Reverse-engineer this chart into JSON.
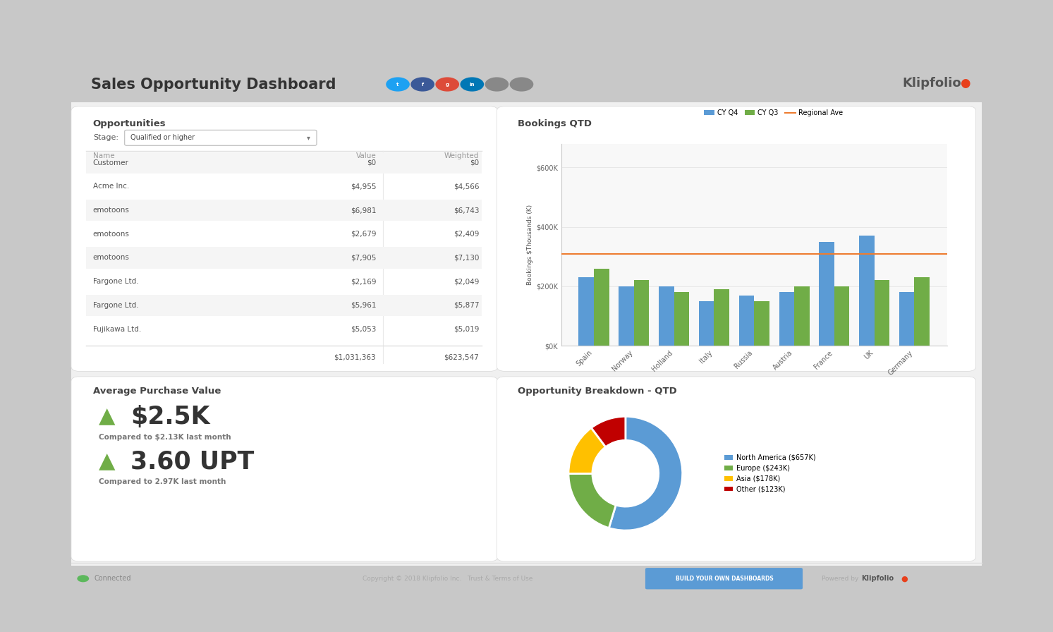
{
  "title": "Sales Opportunity Dashboard",
  "outer_bg": "#c8c8c8",
  "inner_bg": "#f0f0f0",
  "panel_bg": "#ffffff",
  "border_color": "#d8d8d8",
  "opportunities_title": "Opportunities",
  "stage_label": "Stage:",
  "stage_value": "Qualified or higher",
  "table_headers": [
    "Name",
    "Value",
    "Weighted"
  ],
  "table_rows": [
    [
      "Customer",
      "$0",
      "$0"
    ],
    [
      "Acme Inc.",
      "$4,955",
      "$4,566"
    ],
    [
      "emotoons",
      "$6,981",
      "$6,743"
    ],
    [
      "emotoons",
      "$2,679",
      "$2,409"
    ],
    [
      "emotoons",
      "$7,905",
      "$7,130"
    ],
    [
      "Fargone Ltd.",
      "$2,169",
      "$2,049"
    ],
    [
      "Fargone Ltd.",
      "$5,961",
      "$5,877"
    ],
    [
      "Fujikawa Ltd.",
      "$5,053",
      "$5,019"
    ]
  ],
  "table_totals": [
    "$1,031,363",
    "$623,547"
  ],
  "bookings_title": "Bookings QTD",
  "bookings_ylabel": "Bookings $Thousands (K)",
  "bookings_categories": [
    "Spain",
    "Norway",
    "Holland",
    "Italy",
    "Russia",
    "Austria",
    "France",
    "UK",
    "Germany"
  ],
  "bookings_cy_q4": [
    230,
    200,
    200,
    150,
    170,
    180,
    350,
    370,
    180
  ],
  "bookings_cy_q3": [
    260,
    220,
    180,
    190,
    150,
    200,
    200,
    220,
    230
  ],
  "bookings_regional_ave": 310,
  "bookings_color_q4": "#5b9bd5",
  "bookings_color_q3": "#70ad47",
  "bookings_color_ave": "#ed7d31",
  "bookings_yticks": [
    0,
    200,
    400,
    600
  ],
  "bookings_ytick_labels": [
    "$0K",
    "$200K",
    "$400K",
    "$600K"
  ],
  "avg_purchase_title": "Average Purchase Value",
  "avg_purchase_value": "$2.5K",
  "avg_purchase_comparison": "Compared to $2.13K last month",
  "avg_upt_value": "3.60 UPT",
  "avg_upt_comparison": "Compared to 2.97K last month",
  "arrow_color": "#70ad47",
  "comparison_color": "#555555",
  "breakdown_title": "Opportunity Breakdown - QTD",
  "donut_labels": [
    "North America ($657K)",
    "Europe ($243K)",
    "Asia ($178K)",
    "Other ($123K)"
  ],
  "donut_values": [
    657,
    243,
    178,
    123
  ],
  "donut_colors": [
    "#5b9bd5",
    "#70ad47",
    "#ffc000",
    "#c00000"
  ],
  "footer_text": "Copyright © 2018 Klipfolio Inc.   Trust & Terms of Use",
  "footer_button": "BUILD YOUR OWN DASHBOARDS",
  "footer_powered": "Powered by",
  "connected_text": "Connected",
  "klipfolio_color": "#e8401c",
  "icon_colors": [
    "#1da1f2",
    "#3b5998",
    "#dd4b39",
    "#0077b5",
    "#888888",
    "#888888"
  ]
}
